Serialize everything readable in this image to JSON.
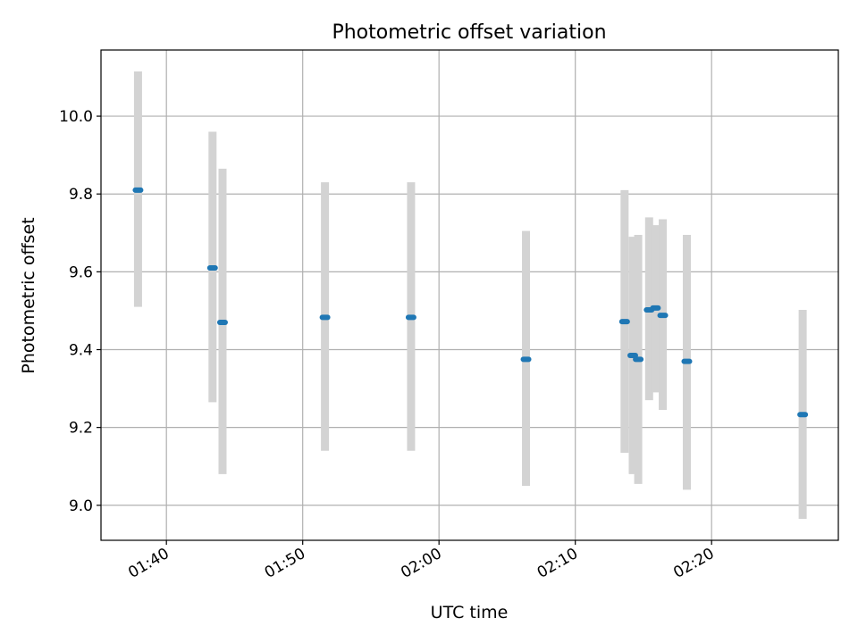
{
  "chart_data": {
    "type": "scatter",
    "title": "Photometric offset variation",
    "xlabel": "UTC time",
    "ylabel": "Photometric offset",
    "x_ticks": [
      "01:40",
      "01:50",
      "02:00",
      "02:10",
      "02:20"
    ],
    "y_ticks": [
      "9.0",
      "9.2",
      "9.4",
      "9.6",
      "9.8",
      "10.0"
    ],
    "xlim": [
      "01:35:12",
      "02:29:18"
    ],
    "ylim": [
      8.91,
      10.17
    ],
    "grid": true,
    "error_bar_color": "#d3d3d3",
    "point_color": "#1f77b4",
    "points": [
      {
        "x": "01:37:55",
        "y": 9.81,
        "ylow": 9.51,
        "yhigh": 10.115
      },
      {
        "x": "01:43:23",
        "y": 9.61,
        "ylow": 9.265,
        "yhigh": 9.96
      },
      {
        "x": "01:44:07",
        "y": 9.47,
        "ylow": 9.08,
        "yhigh": 9.865
      },
      {
        "x": "01:51:38",
        "y": 9.483,
        "ylow": 9.14,
        "yhigh": 9.83
      },
      {
        "x": "01:57:57",
        "y": 9.483,
        "ylow": 9.14,
        "yhigh": 9.83
      },
      {
        "x": "02:06:23",
        "y": 9.375,
        "ylow": 9.05,
        "yhigh": 9.705
      },
      {
        "x": "02:13:37",
        "y": 9.472,
        "ylow": 9.135,
        "yhigh": 9.81
      },
      {
        "x": "02:14:13",
        "y": 9.385,
        "ylow": 9.08,
        "yhigh": 9.69
      },
      {
        "x": "02:14:37",
        "y": 9.375,
        "ylow": 9.055,
        "yhigh": 9.695
      },
      {
        "x": "02:15:25",
        "y": 9.502,
        "ylow": 9.27,
        "yhigh": 9.74
      },
      {
        "x": "02:15:53",
        "y": 9.507,
        "ylow": 9.29,
        "yhigh": 9.72
      },
      {
        "x": "02:16:25",
        "y": 9.488,
        "ylow": 9.245,
        "yhigh": 9.735
      },
      {
        "x": "02:18:11",
        "y": 9.37,
        "ylow": 9.04,
        "yhigh": 9.695
      },
      {
        "x": "02:26:41",
        "y": 9.233,
        "ylow": 8.965,
        "yhigh": 9.502
      }
    ]
  }
}
